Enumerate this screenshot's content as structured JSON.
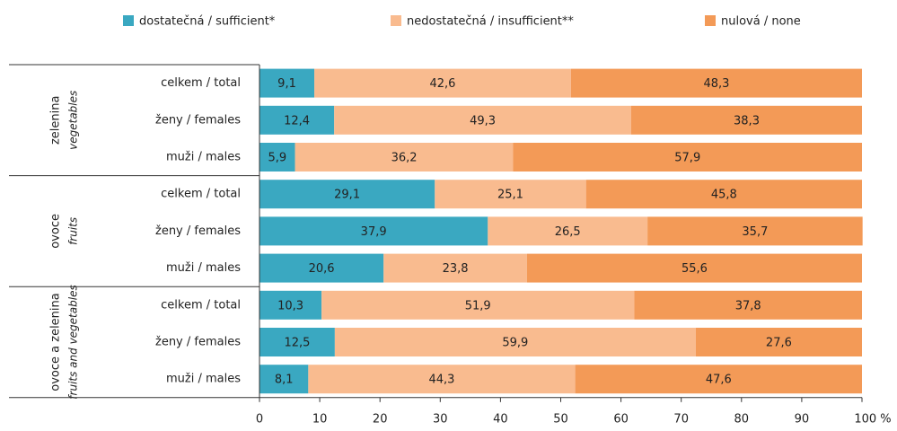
{
  "chart_data": {
    "type": "stacked-bar-horizontal",
    "groups": [
      {
        "name": "zelenina",
        "name_en": "vegetables",
        "categories": [
          "celkem / total",
          "ženy / females",
          "muži / males"
        ]
      },
      {
        "name": "ovoce",
        "name_en": "fruits",
        "categories": [
          "celkem / total",
          "ženy / females",
          "muži / males"
        ]
      },
      {
        "name": "ovoce a zelenina",
        "name_en": "fruits and vegetables",
        "categories": [
          "celkem / total",
          "ženy / females",
          "muži / males"
        ]
      }
    ],
    "series": [
      {
        "name": "dostatečná / sufficient*",
        "color": "#3aa8c1",
        "values": [
          9.1,
          12.4,
          5.9,
          29.1,
          37.9,
          20.6,
          10.3,
          12.5,
          8.1
        ],
        "value_labels": [
          "9,1",
          "12,4",
          "5,9",
          "29,1",
          "37,9",
          "20,6",
          "10,3",
          "12,5",
          "8,1"
        ]
      },
      {
        "name": "nedostatečná / insufficient**",
        "color": "#f9bb8f",
        "values": [
          42.6,
          49.3,
          36.2,
          25.1,
          26.5,
          23.8,
          51.9,
          59.9,
          44.3
        ],
        "value_labels": [
          "42,6",
          "49,3",
          "36,2",
          "25,1",
          "26,5",
          "23,8",
          "51,9",
          "59,9",
          "44,3"
        ]
      },
      {
        "name": "nulová / none",
        "color": "#f39a57",
        "values": [
          48.3,
          38.3,
          57.9,
          45.8,
          35.7,
          55.6,
          37.8,
          27.6,
          47.6
        ],
        "value_labels": [
          "48,3",
          "38,3",
          "57,9",
          "45,8",
          "35,7",
          "55,6",
          "37,8",
          "27,6",
          "47,6"
        ]
      }
    ],
    "xlim": [
      0,
      100
    ],
    "xticks": [
      0,
      10,
      20,
      30,
      40,
      50,
      60,
      70,
      80,
      90,
      {
        "value": 100,
        "label": "100 %"
      }
    ]
  }
}
